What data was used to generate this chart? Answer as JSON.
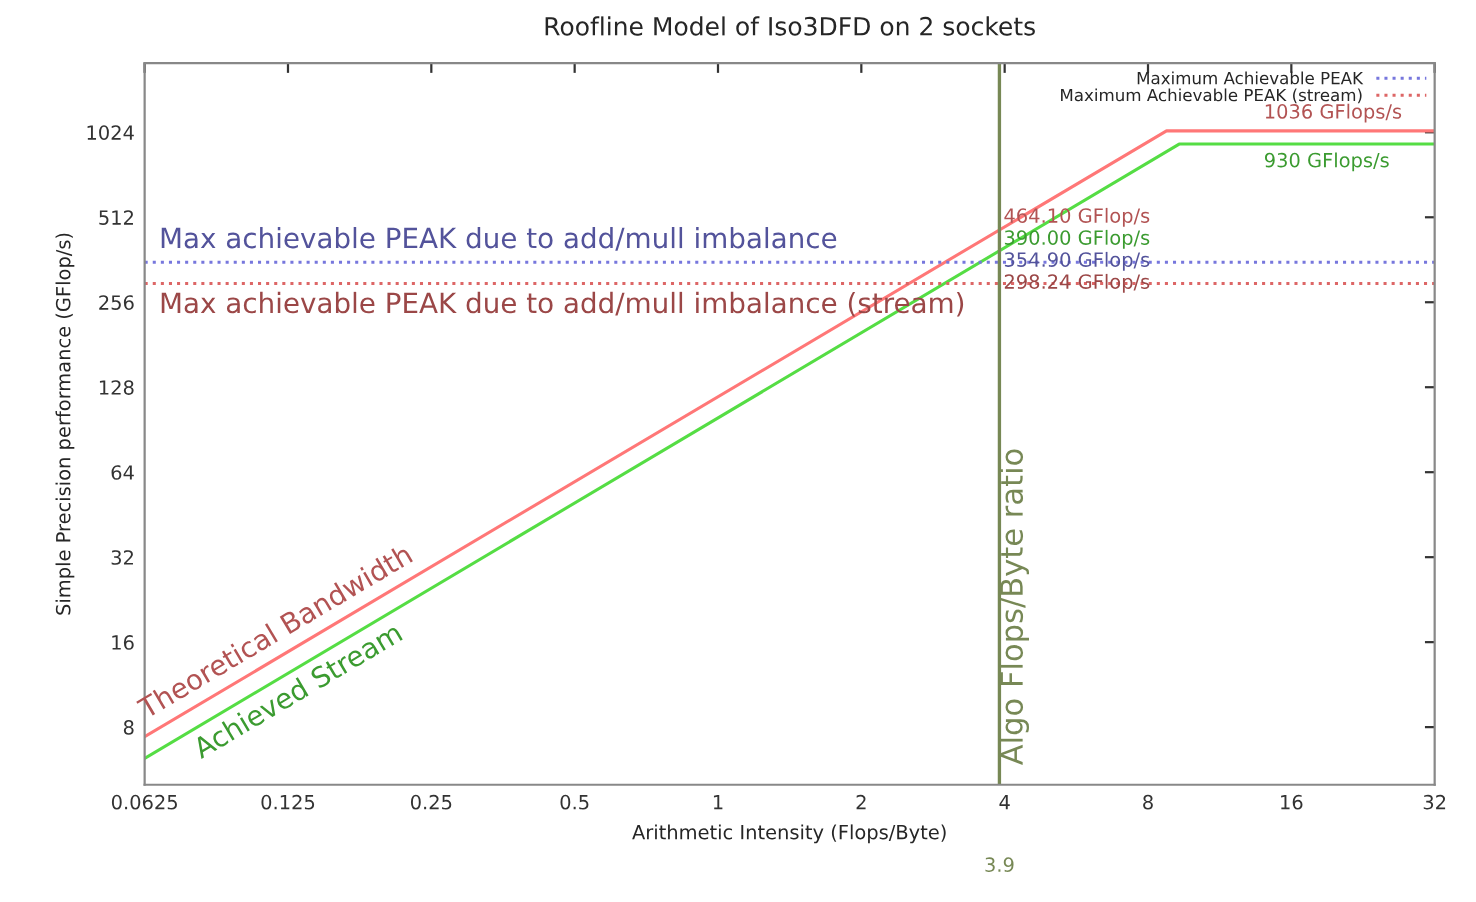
{
  "chart_data": {
    "type": "line",
    "title": "Roofline Model of Iso3DFD on 2 sockets",
    "xlabel": "Arithmetic Intensity (Flops/Byte)",
    "ylabel": "Simple Precision performance (GFlop/s)",
    "log": "xy",
    "xlim": [
      0.0625,
      32
    ],
    "xticks": [
      0.0625,
      0.125,
      0.25,
      0.5,
      1,
      2,
      4,
      8,
      16,
      32
    ],
    "ylim": [
      5,
      1800
    ],
    "yticks": [
      8,
      16,
      32,
      64,
      128,
      256,
      512,
      1024
    ],
    "grid": false,
    "legend": "top right",
    "series": [
      {
        "color": "#ff7777",
        "x": [
          0.0625,
          8.75,
          32
        ],
        "values": [
          7.4,
          1036,
          1036
        ]
      },
      {
        "color": "#55dd44",
        "x": [
          0.0625,
          9.3,
          32
        ],
        "values": [
          6.2,
          930,
          930
        ]
      },
      {
        "name": "Maximum Achievable PEAK",
        "color": "#7777dd",
        "line_style": "dotted",
        "x": [
          0.0625,
          32
        ],
        "values": [
          354.9,
          354.9
        ]
      },
      {
        "name": "Maximum Achievable PEAK (stream)",
        "color": "#dd6666",
        "line_style": "dotted",
        "x": [
          0.0625,
          32
        ],
        "values": [
          298.24,
          298.24
        ]
      }
    ],
    "ref_lines": [
      {
        "axis": "x",
        "value": 3.9,
        "label": "Algo Flops/Byte ratio",
        "color": "#778855"
      }
    ],
    "annotations": [
      {
        "text": "Theoretical Bandwidth",
        "x": 0.125,
        "y": 14.8
      },
      {
        "text": "Achieved Stream",
        "x": 0.125,
        "y": 12.4
      },
      {
        "text": "Max achievable PEAK due to add/mull imbalance",
        "x": 0.067,
        "y": 354.9
      },
      {
        "text": "Max achievable PEAK due to add/mull imbalance (stream)",
        "x": 0.067,
        "y": 298.24
      },
      {
        "text": "1036 GFlops/s",
        "x": 14,
        "y": 1036
      },
      {
        "text": "930 GFlops/s",
        "x": 14,
        "y": 930
      },
      {
        "text": "464.10 GFlop/s",
        "x": 3.9,
        "y": 464.1
      },
      {
        "text": "390.00 GFlop/s",
        "x": 3.9,
        "y": 390
      },
      {
        "text": "354.90 GFlop/s",
        "x": 3.9,
        "y": 354.9
      },
      {
        "text": "298.24 GFlop/s",
        "x": 3.9,
        "y": 298.24
      },
      "3.9"
    ]
  }
}
